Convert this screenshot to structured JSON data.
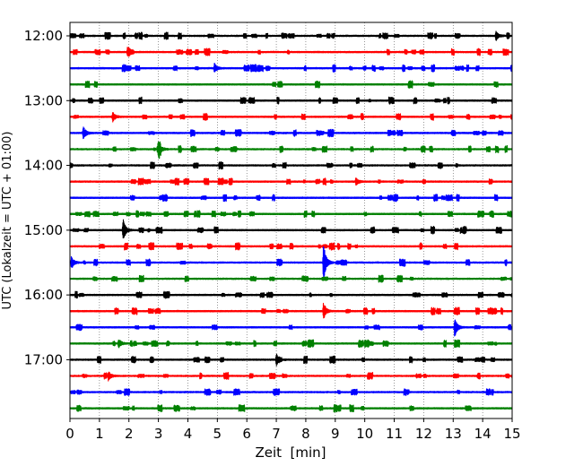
{
  "chart_data": {
    "type": "line",
    "title": "",
    "xlabel": "Zeit  [min]",
    "ylabel": "UTC (Lokalzeit = UTC + 01:00)",
    "xlim": [
      0,
      15
    ],
    "x_ticks": [
      "0",
      "1",
      "2",
      "3",
      "4",
      "5",
      "6",
      "7",
      "8",
      "9",
      "10",
      "11",
      "12",
      "13",
      "14",
      "15"
    ],
    "y_ticks": [
      "12:00",
      "13:00",
      "14:00",
      "15:00",
      "16:00",
      "17:00"
    ],
    "grid": "vertical dotted",
    "trace_colors": [
      "#000000",
      "#ff0000",
      "#0000ff",
      "#008000"
    ],
    "traces": [
      {
        "start": "12:00",
        "color": "#000000"
      },
      {
        "start": "12:15",
        "color": "#ff0000"
      },
      {
        "start": "12:30",
        "color": "#0000ff"
      },
      {
        "start": "12:45",
        "color": "#008000"
      },
      {
        "start": "13:00",
        "color": "#000000"
      },
      {
        "start": "13:15",
        "color": "#ff0000"
      },
      {
        "start": "13:30",
        "color": "#0000ff"
      },
      {
        "start": "13:45",
        "color": "#008000"
      },
      {
        "start": "14:00",
        "color": "#000000"
      },
      {
        "start": "14:15",
        "color": "#ff0000"
      },
      {
        "start": "14:30",
        "color": "#0000ff"
      },
      {
        "start": "14:45",
        "color": "#008000"
      },
      {
        "start": "15:00",
        "color": "#000000"
      },
      {
        "start": "15:15",
        "color": "#ff0000"
      },
      {
        "start": "15:30",
        "color": "#0000ff"
      },
      {
        "start": "15:45",
        "color": "#008000"
      },
      {
        "start": "16:00",
        "color": "#000000"
      },
      {
        "start": "16:15",
        "color": "#ff0000"
      },
      {
        "start": "16:30",
        "color": "#0000ff"
      },
      {
        "start": "16:45",
        "color": "#008000"
      },
      {
        "start": "17:00",
        "color": "#000000"
      },
      {
        "start": "17:15",
        "color": "#ff0000"
      },
      {
        "start": "17:30",
        "color": "#0000ff"
      },
      {
        "start": "17:45",
        "color": "#008000"
      }
    ],
    "events": [
      {
        "trace": "13:30",
        "t": 0.45,
        "amplitude": 0.45
      },
      {
        "trace": "13:45",
        "t": 3.0,
        "amplitude": 0.55
      },
      {
        "trace": "15:00",
        "t": 1.8,
        "amplitude": 0.7
      },
      {
        "trace": "15:30",
        "t": 0.05,
        "amplitude": 0.4
      },
      {
        "trace": "15:30",
        "t": 8.6,
        "amplitude": 1.2
      },
      {
        "trace": "16:15",
        "t": 8.6,
        "amplitude": 0.55
      },
      {
        "trace": "16:30",
        "t": 13.05,
        "amplitude": 0.6
      },
      {
        "trace": "16:45",
        "t": 1.65,
        "amplitude": 0.3
      },
      {
        "trace": "17:00",
        "t": 7.0,
        "amplitude": 0.3
      },
      {
        "trace": "12:00",
        "t": 14.45,
        "amplitude": 0.3
      },
      {
        "trace": "12:15",
        "t": 1.95,
        "amplitude": 0.3
      },
      {
        "trace": "12:30",
        "t": 4.9,
        "amplitude": 0.3
      },
      {
        "trace": "13:15",
        "t": 1.45,
        "amplitude": 0.3
      },
      {
        "trace": "14:15",
        "t": 9.7,
        "amplitude": 0.25
      },
      {
        "trace": "17:15",
        "t": 1.3,
        "amplitude": 0.3
      }
    ]
  }
}
